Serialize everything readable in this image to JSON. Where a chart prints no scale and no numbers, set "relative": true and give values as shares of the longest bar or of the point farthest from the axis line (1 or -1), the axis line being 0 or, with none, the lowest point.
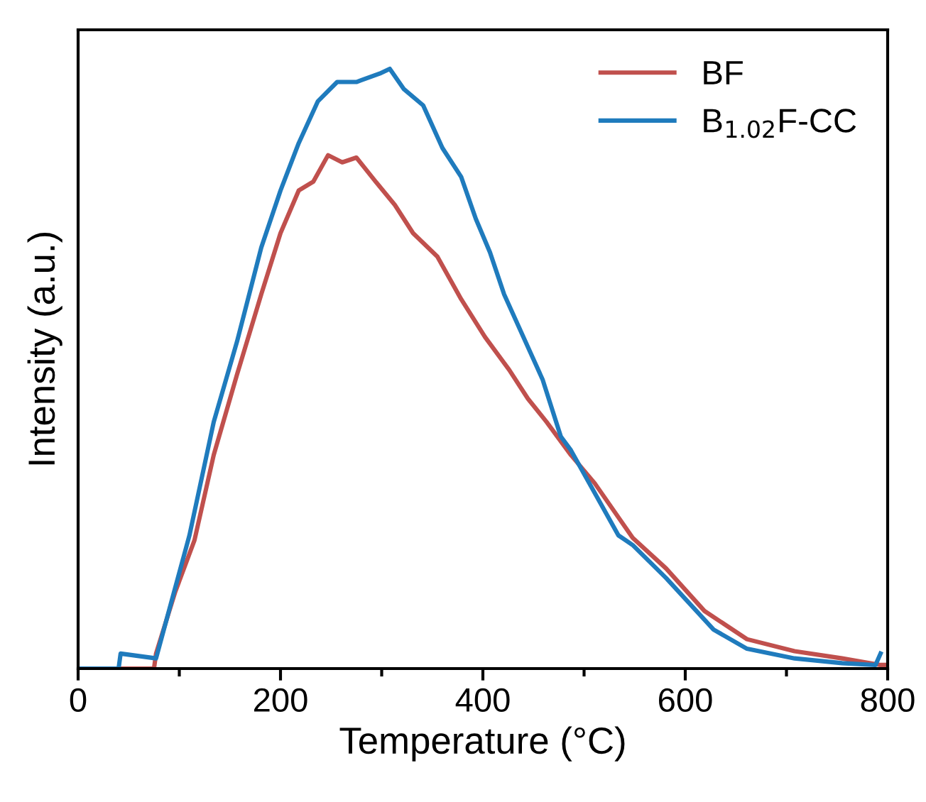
{
  "chart_data": {
    "type": "line",
    "relative": true,
    "xlabel": "Temperature (°C)",
    "ylabel": "Intensity (a.u.)",
    "xlim": [
      0,
      800
    ],
    "xticks": [
      0,
      200,
      400,
      600,
      800
    ],
    "legend": "top right",
    "grid": false,
    "marker": "none",
    "line_style": "solid",
    "series": [
      {
        "name": "BF",
        "color": "#c0504d",
        "x": [
          0,
          40,
          75,
          77,
          96,
          115,
          134,
          157,
          181,
          200,
          218,
          232.5,
          247,
          261,
          275,
          294,
          313,
          331,
          355,
          378.5,
          402,
          426,
          444.5,
          463,
          487,
          510.5,
          548,
          581,
          619,
          661,
          708,
          755,
          793,
          800
        ],
        "values": [
          0,
          0,
          0,
          0.025,
          0.128,
          0.214,
          0.356,
          0.49,
          0.624,
          0.726,
          0.797,
          0.812,
          0.856,
          0.844,
          0.852,
          0.812,
          0.773,
          0.726,
          0.687,
          0.616,
          0.553,
          0.498,
          0.45,
          0.411,
          0.356,
          0.309,
          0.218,
          0.167,
          0.096,
          0.049,
          0.029,
          0.017,
          0.006,
          0.006
        ]
      },
      {
        "name": "B$_{1.02}$F-CC",
        "color": "#1f7bbd",
        "x": [
          0,
          40,
          42,
          77,
          91,
          110,
          134,
          157,
          181,
          200,
          218,
          237,
          256,
          275,
          298,
          308,
          322,
          341,
          360,
          378.5,
          393,
          407,
          421,
          440,
          459,
          477,
          487,
          510.5,
          534,
          548,
          581,
          628,
          661,
          708,
          755,
          788,
          793
        ],
        "values": [
          0,
          0,
          0.025,
          0.017,
          0.104,
          0.222,
          0.411,
          0.545,
          0.702,
          0.797,
          0.876,
          0.946,
          0.978,
          0.978,
          0.992,
          1,
          0.966,
          0.939,
          0.868,
          0.82,
          0.75,
          0.694,
          0.624,
          0.553,
          0.482,
          0.387,
          0.364,
          0.293,
          0.222,
          0.206,
          0.151,
          0.065,
          0.033,
          0.017,
          0.009,
          0.006,
          0.025
        ]
      }
    ]
  }
}
